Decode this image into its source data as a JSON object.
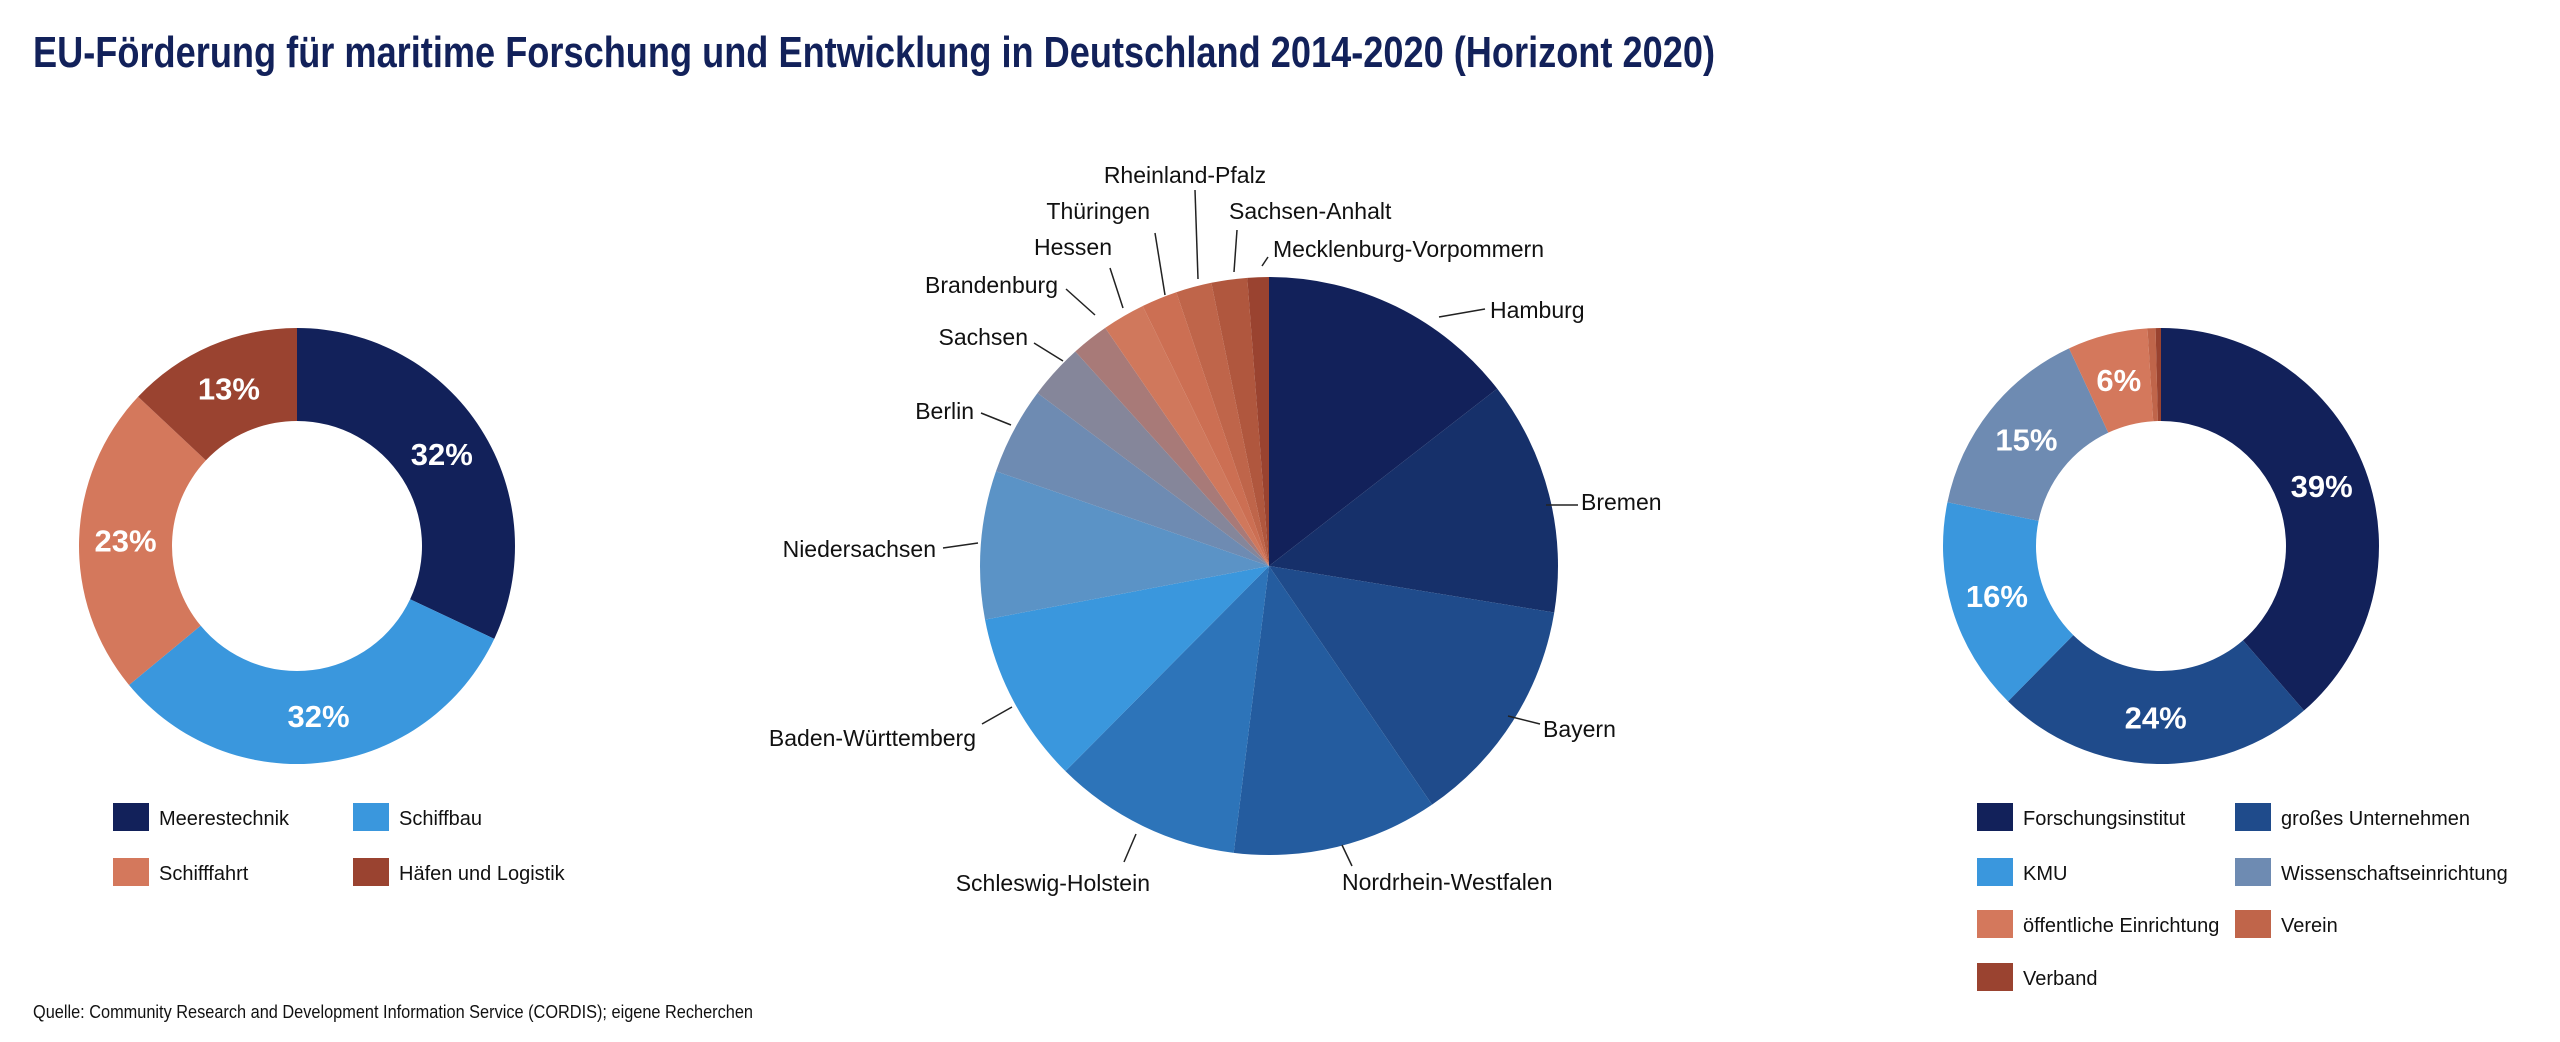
{
  "title": "EU-Förderung für maritime Forschung und Entwicklung in Deutschland 2014-2020 (Horizont 2020)",
  "source": "Quelle: Community Research and Development Information Service (CORDIS); eigene Recherchen",
  "chart_data": [
    {
      "type": "pie",
      "variant": "donut",
      "categories": [
        "Meerestechnik",
        "Schiffbau",
        "Schifffahrt",
        "Häfen und Logistik"
      ],
      "values": [
        32,
        32,
        23,
        13
      ],
      "data_labels": [
        "32%",
        "32%",
        "23%",
        "13%"
      ],
      "colors": [
        "#12215a",
        "#3a97dd",
        "#d4785c",
        "#9a4330"
      ],
      "legend_placement": "bottom"
    },
    {
      "type": "pie",
      "categories": [
        "Hamburg",
        "Bremen",
        "Bayern",
        "Nordrhein-Westfalen",
        "Schleswig-Holstein",
        "Baden-Württemberg",
        "Niedersachsen",
        "Berlin",
        "Sachsen",
        "Brandenburg",
        "Hessen",
        "Thüringen",
        "Rheinland-Pfalz",
        "Sachsen-Anhalt",
        "Mecklenburg-Vorpommern"
      ],
      "values": [
        14.5,
        13.1,
        12.9,
        11.5,
        10.5,
        9.6,
        8.3,
        4.9,
        3.1,
        2.1,
        2.4,
        2.0,
        2.0,
        2.0,
        1.2
      ],
      "colors": [
        "#12215a",
        "#16306a",
        "#1f4b8b",
        "#245c9f",
        "#2d74b9",
        "#3a97dd",
        "#5b93c6",
        "#6e8bb2",
        "#85869a",
        "#a87a78",
        "#d0785c",
        "#cc6f53",
        "#bf654a",
        "#b0573e",
        "#9a4330"
      ],
      "legend_placement": "none"
    },
    {
      "type": "pie",
      "variant": "donut",
      "categories": [
        "Forschungsinstitut",
        "großes Unternehmen",
        "KMU",
        "Wissenschaftseinrichtung",
        "öffentliche Einrichtung",
        "Verein",
        "Verband"
      ],
      "values": [
        39,
        24,
        16,
        15,
        6,
        0.6,
        0.4
      ],
      "data_labels": [
        "39%",
        "24%",
        "16%",
        "15%",
        "6%",
        "",
        ""
      ],
      "colors": [
        "#12215a",
        "#1f4b8b",
        "#3a97dd",
        "#6e8bb2",
        "#d4785c",
        "#c0654a",
        "#9a4330"
      ],
      "legend_placement": "bottom"
    }
  ]
}
